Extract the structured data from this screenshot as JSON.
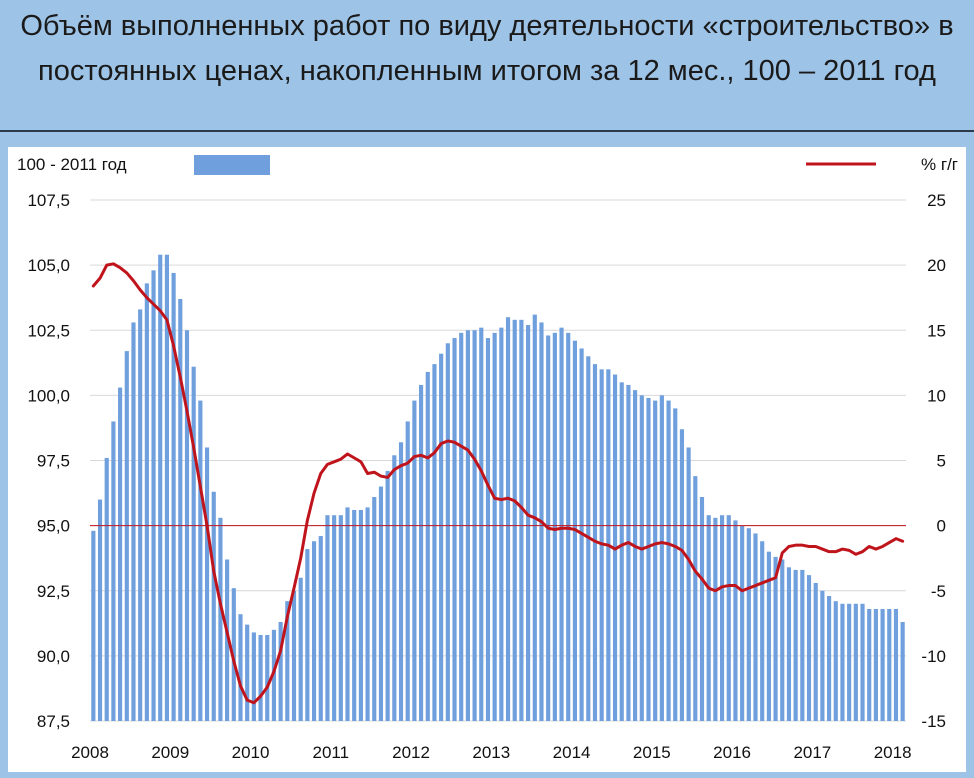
{
  "title": "Объём выполненных работ по виду деятельности «строительство» в постоянных ценах, накопленным итогом за 12 мес., 100 – 2011 год",
  "legend": {
    "bars_label": "100 - 2011 год",
    "line_label": "%  г/г"
  },
  "colors": {
    "background": "#9dc3e6",
    "bar": "#6f9fdc",
    "line": "#c0141c",
    "ref_line": "#c0141c",
    "grid": "#d9d9d9"
  },
  "chart_data": {
    "type": "bar",
    "x_tick_labels": [
      "2008",
      "2009",
      "2010",
      "2011",
      "2012",
      "2013",
      "2014",
      "2015",
      "2016",
      "2017",
      "2018"
    ],
    "y_left": {
      "range": [
        87.5,
        107.5
      ],
      "ticks": [
        "87,5",
        "90,0",
        "92,5",
        "95,0",
        "97,5",
        "100,0",
        "102,5",
        "105,0",
        "107,5"
      ]
    },
    "y_right": {
      "range": [
        -15,
        25
      ],
      "ticks": [
        "-15",
        "-10",
        "-5",
        "0",
        "5",
        "10",
        "15",
        "20",
        "25"
      ]
    },
    "reference_line_right": 0,
    "grid": true,
    "series": [
      {
        "type": "bar",
        "axis": "left",
        "start": "2008-01",
        "frequency": "monthly",
        "values": [
          94.8,
          96.0,
          97.6,
          99.0,
          100.3,
          101.7,
          102.8,
          103.3,
          104.3,
          104.8,
          105.4,
          105.4,
          104.7,
          103.7,
          102.5,
          101.1,
          99.8,
          98.0,
          96.3,
          95.3,
          93.7,
          92.6,
          91.6,
          91.2,
          90.9,
          90.8,
          90.8,
          91.0,
          91.3,
          92.1,
          92.5,
          93.0,
          94.1,
          94.4,
          94.6,
          95.4,
          95.4,
          95.4,
          95.7,
          95.6,
          95.6,
          95.7,
          96.1,
          96.5,
          97.1,
          97.7,
          98.2,
          99.0,
          99.8,
          100.4,
          100.9,
          101.2,
          101.6,
          102.0,
          102.2,
          102.4,
          102.5,
          102.5,
          102.6,
          102.2,
          102.4,
          102.6,
          103.0,
          102.9,
          102.9,
          102.7,
          103.1,
          102.8,
          102.3,
          102.4,
          102.6,
          102.4,
          102.1,
          101.8,
          101.5,
          101.2,
          101.0,
          101.0,
          100.8,
          100.5,
          100.4,
          100.2,
          100.0,
          99.9,
          99.8,
          100.0,
          99.8,
          99.5,
          98.7,
          98.0,
          96.9,
          96.1,
          95.4,
          95.3,
          95.4,
          95.4,
          95.2,
          95.0,
          94.9,
          94.7,
          94.4,
          94.0,
          93.8,
          93.7,
          93.4,
          93.3,
          93.3,
          93.1,
          92.8,
          92.5,
          92.3,
          92.1,
          92.0,
          92.0,
          92.0,
          92.0,
          91.8,
          91.8,
          91.8,
          91.8,
          91.8,
          91.3
        ]
      },
      {
        "type": "line",
        "axis": "right",
        "start": "2008-01",
        "frequency": "monthly",
        "values": [
          18.4,
          19.0,
          20.0,
          20.1,
          19.8,
          19.4,
          18.8,
          18.1,
          17.5,
          17.0,
          16.5,
          15.8,
          13.8,
          11.4,
          8.8,
          6.0,
          3.0,
          0.0,
          -3.5,
          -6.0,
          -8.2,
          -10.4,
          -12.3,
          -13.4,
          -13.6,
          -13.1,
          -12.4,
          -11.2,
          -9.6,
          -7.0,
          -4.8,
          -2.5,
          0.4,
          2.5,
          4.0,
          4.7,
          4.9,
          5.1,
          5.5,
          5.2,
          4.9,
          4.0,
          4.1,
          3.8,
          3.7,
          4.3,
          4.6,
          4.8,
          5.3,
          5.4,
          5.2,
          5.6,
          6.3,
          6.5,
          6.4,
          6.1,
          5.8,
          5.1,
          4.2,
          3.1,
          2.1,
          2.0,
          2.1,
          1.9,
          1.4,
          0.8,
          0.6,
          0.3,
          -0.2,
          -0.3,
          -0.2,
          -0.2,
          -0.3,
          -0.6,
          -0.9,
          -1.2,
          -1.4,
          -1.5,
          -1.8,
          -1.5,
          -1.3,
          -1.6,
          -1.8,
          -1.6,
          -1.4,
          -1.3,
          -1.4,
          -1.6,
          -1.9,
          -2.6,
          -3.5,
          -4.1,
          -4.8,
          -5.0,
          -4.7,
          -4.6,
          -4.6,
          -5.0,
          -4.8,
          -4.6,
          -4.4,
          -4.2,
          -4.0,
          -2.1,
          -1.6,
          -1.5,
          -1.5,
          -1.6,
          -1.6,
          -1.8,
          -2.0,
          -2.0,
          -1.8,
          -1.9,
          -2.2,
          -2.0,
          -1.6,
          -1.8,
          -1.6,
          -1.3,
          -1.0,
          -1.2
        ]
      }
    ]
  }
}
